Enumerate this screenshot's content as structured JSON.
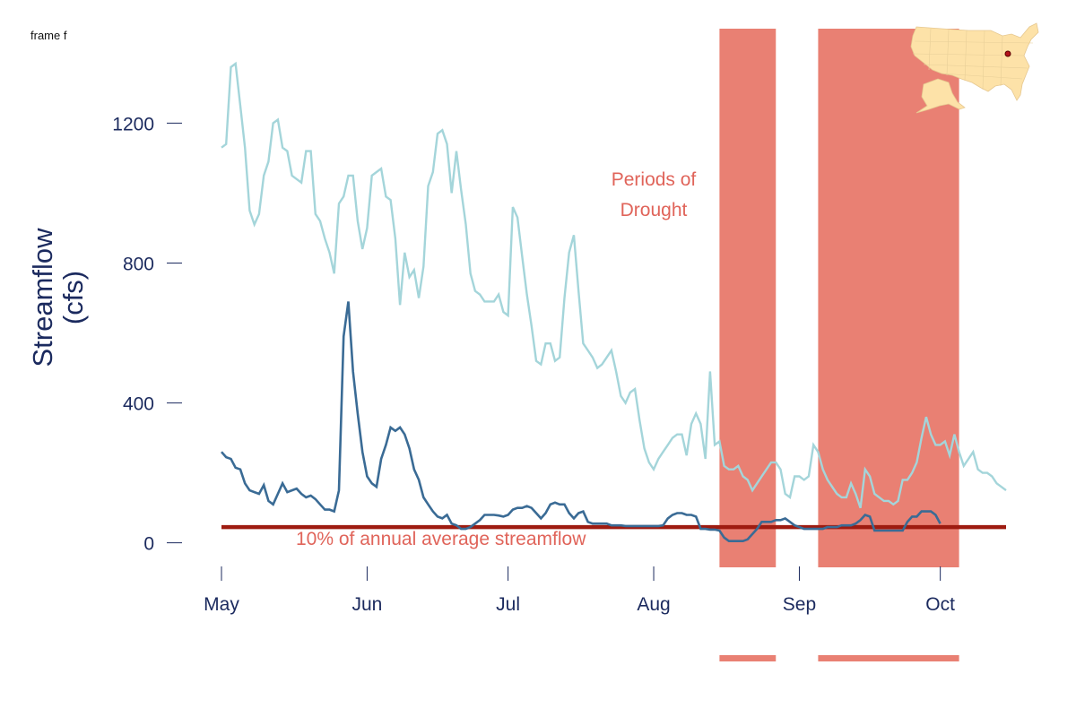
{
  "frame_label": "frame f",
  "colors": {
    "axis_text": "#1b2a5e",
    "drought": "#e98073",
    "drought_text": "#e0645a",
    "threshold": "#9e1b10",
    "series_light": "#a4d5da",
    "series_dark": "#3a6b95",
    "map_fill": "#fde2a8",
    "map_marker": "#b3121a"
  },
  "annotations": {
    "drought_label_line1": "Periods of",
    "drought_label_line2": "Drought",
    "threshold_label": "10% of annual average streamflow"
  },
  "map_icon": "usa-map-icon",
  "chart_data": {
    "type": "line",
    "ylabel_line1": "Streamflow",
    "ylabel_line2": "(cfs)",
    "xlabel": "",
    "x_start": "2016-05-01",
    "x_end": "2016-10-15",
    "xlim": [
      "2016-05-01",
      "2016-10-15"
    ],
    "ylim": [
      -70,
      1470
    ],
    "yticks": [
      0,
      400,
      800,
      1200
    ],
    "ytick_labels": [
      "0",
      "400",
      "800",
      "1200"
    ],
    "xticks": [
      "2016-05-01",
      "2016-06-01",
      "2016-07-01",
      "2016-08-01",
      "2016-09-01",
      "2016-10-01"
    ],
    "xtick_labels": [
      "May",
      "Jun",
      "Jul",
      "Aug",
      "Sep",
      "Oct"
    ],
    "threshold": 45,
    "drought_periods": [
      [
        "2016-08-15",
        "2016-08-27"
      ],
      [
        "2016-09-05",
        "2016-10-05"
      ]
    ],
    "grid": false,
    "series": [
      {
        "values": [
          1130,
          1140,
          1360,
          1370,
          1250,
          1130,
          950,
          910,
          940,
          1050,
          1090,
          1200,
          1210,
          1130,
          1120,
          1050,
          1040,
          1030,
          1120,
          1120,
          940,
          920,
          870,
          830,
          770,
          970,
          990,
          1050,
          1050,
          920,
          840,
          900,
          1050,
          1060,
          1070,
          990,
          980,
          870,
          680,
          830,
          760,
          780,
          700,
          790,
          1020,
          1060,
          1170,
          1180,
          1140,
          1000,
          1120,
          1010,
          910,
          770,
          720,
          710,
          690,
          690,
          690,
          710,
          660,
          650,
          960,
          930,
          820,
          710,
          620,
          520,
          510,
          570,
          570,
          520,
          530,
          700,
          830,
          880,
          720,
          570,
          550,
          530,
          500,
          510,
          530,
          550,
          490,
          420,
          400,
          430,
          440,
          350,
          270,
          230,
          210,
          240,
          260,
          280,
          300,
          310,
          310,
          250,
          340,
          370,
          340,
          240,
          490,
          280,
          290,
          220,
          210,
          210,
          220,
          190,
          180,
          150,
          170,
          190,
          210,
          230,
          230,
          210,
          140,
          130,
          190,
          190,
          180,
          190,
          280,
          260,
          210,
          180,
          160,
          140,
          130,
          130,
          170,
          140,
          100,
          210,
          190,
          140,
          130,
          120,
          120,
          110,
          120,
          180,
          180,
          200,
          230,
          300,
          360,
          310,
          280,
          280,
          290,
          250,
          310,
          260,
          220,
          240,
          260,
          210,
          200,
          200,
          190,
          170,
          160,
          150
        ],
        "dates_start": "2016-05-01"
      },
      {
        "values": [
          260,
          245,
          240,
          215,
          210,
          170,
          150,
          145,
          140,
          165,
          120,
          110,
          140,
          170,
          145,
          150,
          155,
          140,
          130,
          135,
          125,
          110,
          95,
          95,
          90,
          150,
          590,
          690,
          490,
          370,
          260,
          190,
          170,
          160,
          240,
          280,
          330,
          320,
          330,
          310,
          270,
          210,
          180,
          130,
          110,
          90,
          75,
          70,
          80,
          55,
          50,
          40,
          40,
          45,
          55,
          65,
          80,
          80,
          80,
          78,
          75,
          80,
          95,
          100,
          100,
          105,
          100,
          85,
          70,
          85,
          110,
          115,
          110,
          110,
          85,
          70,
          85,
          90,
          60,
          55,
          55,
          55,
          55,
          50,
          50,
          50,
          48,
          48,
          48,
          48,
          48,
          48,
          48,
          48,
          50,
          70,
          80,
          85,
          85,
          80,
          80,
          75,
          40,
          40,
          38,
          38,
          35,
          15,
          5,
          5,
          5,
          5,
          10,
          25,
          40,
          60,
          60,
          60,
          65,
          65,
          70,
          60,
          50,
          45,
          40,
          40,
          40,
          40,
          40,
          45,
          45,
          45,
          50,
          50,
          50,
          55,
          65,
          80,
          75,
          35,
          35,
          35,
          35,
          35,
          35,
          35,
          60,
          75,
          75,
          90,
          90,
          90,
          80,
          55
        ],
        "dates_start": "2016-05-01"
      }
    ]
  }
}
